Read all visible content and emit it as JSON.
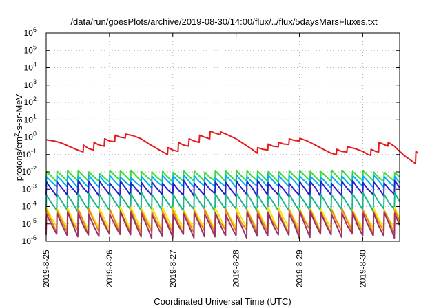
{
  "chart_data": {
    "type": "line",
    "title": "/data/run/goesPlots/archive/2019-08-30/14:00/flux/../flux/5daysMarsFluxes.txt",
    "xlabel": "Coordinated Universal Time (UTC)",
    "ylabel_parts": [
      "protons/cm",
      "2",
      "-s-sr-MeV"
    ],
    "y_scale": "log",
    "ylim": [
      1e-06,
      1000000.0
    ],
    "xlim_days_range": [
      "2019-08-25T00:00",
      "2019-08-30T14:00"
    ],
    "grid": true,
    "legend": "none",
    "y_ticks": [
      {
        "base": "10",
        "exp": "6",
        "value": 1000000.0
      },
      {
        "base": "10",
        "exp": "5",
        "value": 100000.0
      },
      {
        "base": "10",
        "exp": "4",
        "value": 10000.0
      },
      {
        "base": "10",
        "exp": "3",
        "value": 1000.0
      },
      {
        "base": "10",
        "exp": "2",
        "value": 100.0
      },
      {
        "base": "10",
        "exp": "1",
        "value": 10.0
      },
      {
        "base": "10",
        "exp": "0",
        "value": 1.0
      },
      {
        "base": "10",
        "exp": "-1",
        "value": 0.1
      },
      {
        "base": "10",
        "exp": "-2",
        "value": 0.01
      },
      {
        "base": "10",
        "exp": "-3",
        "value": 0.001
      },
      {
        "base": "10",
        "exp": "-4",
        "value": 0.0001
      },
      {
        "base": "10",
        "exp": "-5",
        "value": 1e-05
      },
      {
        "base": "10",
        "exp": "-6",
        "value": 1e-06
      }
    ],
    "x_ticks": [
      {
        "label": "2019-8-25",
        "date": "2019-08-25T00:00"
      },
      {
        "label": "2019-8-26",
        "date": "2019-08-26T00:00"
      },
      {
        "label": "2019-8-27",
        "date": "2019-08-27T00:00"
      },
      {
        "label": "2019-8-28",
        "date": "2019-08-28T00:00"
      },
      {
        "label": "2019-8-29",
        "date": "2019-08-29T00:00"
      },
      {
        "label": "2019-8-30",
        "date": "2019-08-30T00:00"
      }
    ],
    "series": [
      {
        "color": "#e41a1c",
        "points": [
          [
            "2019-08-25T00:00",
            0.7
          ],
          [
            "2019-08-25T03:00",
            0.6
          ],
          [
            "2019-08-25T06:00",
            0.45
          ],
          [
            "2019-08-25T09:00",
            0.28
          ],
          [
            "2019-08-25T12:00",
            0.18
          ],
          [
            "2019-08-25T14:00",
            0.14
          ],
          [
            "2019-08-25T14:10",
            0.35
          ],
          [
            "2019-08-25T16:00",
            0.22
          ],
          [
            "2019-08-25T18:00",
            0.18
          ],
          [
            "2019-08-25T18:10",
            0.5
          ],
          [
            "2019-08-25T20:00",
            0.35
          ],
          [
            "2019-08-25T22:00",
            0.3
          ],
          [
            "2019-08-25T22:10",
            0.8
          ],
          [
            "2019-08-26T00:00",
            0.6
          ],
          [
            "2019-08-26T02:00",
            0.55
          ],
          [
            "2019-08-26T02:10",
            1.3
          ],
          [
            "2019-08-26T04:00",
            1.0
          ],
          [
            "2019-08-26T06:00",
            0.9
          ],
          [
            "2019-08-26T06:10",
            1.5
          ],
          [
            "2019-08-26T09:00",
            1.2
          ],
          [
            "2019-08-26T12:00",
            0.8
          ],
          [
            "2019-08-26T15:00",
            0.4
          ],
          [
            "2019-08-26T18:00",
            0.22
          ],
          [
            "2019-08-26T21:00",
            0.12
          ],
          [
            "2019-08-26T22:00",
            0.1
          ],
          [
            "2019-08-26T22:10",
            0.25
          ],
          [
            "2019-08-27T00:00",
            0.18
          ],
          [
            "2019-08-27T02:00",
            0.15
          ],
          [
            "2019-08-27T02:10",
            0.5
          ],
          [
            "2019-08-27T04:00",
            0.35
          ],
          [
            "2019-08-27T06:00",
            0.3
          ],
          [
            "2019-08-27T06:10",
            0.8
          ],
          [
            "2019-08-27T08:00",
            0.6
          ],
          [
            "2019-08-27T10:00",
            0.5
          ],
          [
            "2019-08-27T10:10",
            1.3
          ],
          [
            "2019-08-27T12:00",
            1.0
          ],
          [
            "2019-08-27T14:00",
            0.8
          ],
          [
            "2019-08-27T14:10",
            2.2
          ],
          [
            "2019-08-27T16:00",
            1.7
          ],
          [
            "2019-08-27T18:00",
            1.4
          ],
          [
            "2019-08-27T18:10",
            2.0
          ],
          [
            "2019-08-27T21:00",
            1.3
          ],
          [
            "2019-08-28T00:00",
            0.8
          ],
          [
            "2019-08-28T03:00",
            0.4
          ],
          [
            "2019-08-28T06:00",
            0.2
          ],
          [
            "2019-08-28T08:00",
            0.12
          ],
          [
            "2019-08-28T08:10",
            0.25
          ],
          [
            "2019-08-28T10:00",
            0.2
          ],
          [
            "2019-08-28T12:00",
            0.18
          ],
          [
            "2019-08-28T12:10",
            0.4
          ],
          [
            "2019-08-28T14:00",
            0.3
          ],
          [
            "2019-08-28T16:00",
            0.28
          ],
          [
            "2019-08-28T16:10",
            0.5
          ],
          [
            "2019-08-28T18:00",
            0.4
          ],
          [
            "2019-08-28T20:00",
            0.38
          ],
          [
            "2019-08-28T20:10",
            0.8
          ],
          [
            "2019-08-28T22:00",
            0.65
          ],
          [
            "2019-08-29T00:00",
            0.6
          ],
          [
            "2019-08-29T00:10",
            0.85
          ],
          [
            "2019-08-29T03:00",
            0.6
          ],
          [
            "2019-08-29T06:00",
            0.35
          ],
          [
            "2019-08-29T09:00",
            0.2
          ],
          [
            "2019-08-29T12:00",
            0.12
          ],
          [
            "2019-08-29T14:00",
            0.1
          ],
          [
            "2019-08-29T14:10",
            0.2
          ],
          [
            "2019-08-29T16:00",
            0.15
          ],
          [
            "2019-08-29T18:00",
            0.14
          ],
          [
            "2019-08-29T18:10",
            0.28
          ],
          [
            "2019-08-29T21:00",
            0.22
          ],
          [
            "2019-08-30T00:00",
            0.15
          ],
          [
            "2019-08-30T02:00",
            0.1
          ],
          [
            "2019-08-30T03:00",
            0.09
          ],
          [
            "2019-08-30T03:10",
            0.2
          ],
          [
            "2019-08-30T05:00",
            0.15
          ],
          [
            "2019-08-30T06:00",
            0.14
          ],
          [
            "2019-08-30T06:10",
            0.5
          ],
          [
            "2019-08-30T08:00",
            0.38
          ],
          [
            "2019-08-30T09:30",
            0.3
          ],
          [
            "2019-08-30T09:40",
            0.5
          ],
          [
            "2019-08-30T12:00",
            0.3
          ],
          [
            "2019-08-30T14:00",
            0.15
          ],
          [
            "2019-08-30T16:00",
            0.08
          ],
          [
            "2019-08-30T18:00",
            0.05
          ],
          [
            "2019-08-30T20:00",
            0.03
          ],
          [
            "2019-08-30T20:10",
            0.15
          ],
          [
            "2019-08-30T21:00",
            0.12
          ]
        ]
      },
      {
        "color": "#33dd33",
        "base": 0.0055,
        "amp": 0.45,
        "seed": 1
      },
      {
        "color": "#00b0f0",
        "base": 0.0028,
        "amp": 0.5,
        "seed": 2
      },
      {
        "color": "#2222cc",
        "base": 0.0011,
        "amp": 0.6,
        "seed": 3
      },
      {
        "color": "#1ab58a",
        "base": 0.00018,
        "amp": 0.75,
        "seed": 4
      },
      {
        "color": "#f3e600",
        "base": 2e-05,
        "amp": 0.95,
        "seed": 5
      },
      {
        "color": "#f08020",
        "base": 1.4e-05,
        "amp": 1.0,
        "seed": 6
      },
      {
        "color": "#993366",
        "base": 9e-06,
        "amp": 1.05,
        "seed": 7
      }
    ]
  }
}
